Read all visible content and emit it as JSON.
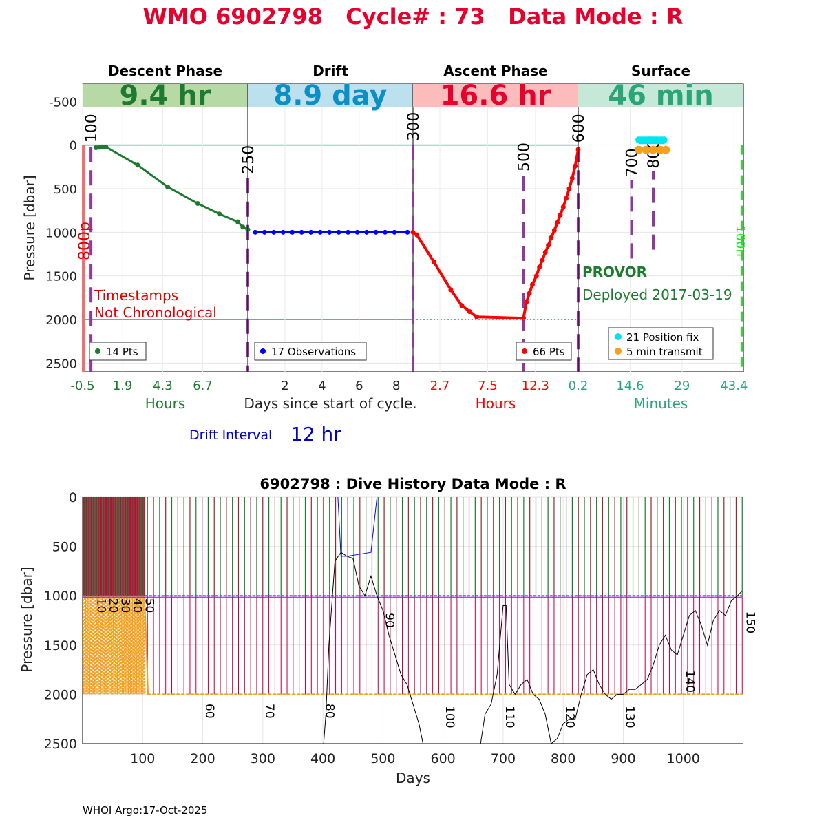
{
  "title": "WMO 6902798   Cycle# : 73   Data Mode : R",
  "colors": {
    "title": "#e8002d",
    "descent": "#1e7a2e",
    "descent_bg": "#b7d9a6",
    "drift": "#0000ff",
    "drift_text": "#0b8fc4",
    "drift_bg": "#bde0ee",
    "ascent": "#ff0000",
    "ascent_text": "#e8002d",
    "ascent_bg": "#fdbcbc",
    "surface_text": "#2aa57a",
    "surface_bg": "#c5e8d8",
    "marker_purple": "#8e3a9c",
    "position_fix": "#00e5ee",
    "transmit": "#f7a020",
    "ref_line": "#2e9a7e",
    "green_dashed": "#22e022",
    "dive_green": "#1e7a2e",
    "dive_brown": "#8b2e2e",
    "dive_crimson": "#c0003c",
    "dive_magenta": "#ff00ff",
    "dive_orange": "#f2a020"
  },
  "chart_data": [
    {
      "type": "line",
      "panel": "cycle",
      "ylabel": "Pressure [dbar]",
      "ylim": [
        2600,
        -700
      ],
      "yticks": [
        -500,
        0,
        500,
        1000,
        1500,
        2000,
        2500
      ],
      "ytick_labels": [
        "-500",
        "0",
        "500",
        "1000",
        "1500",
        "2000",
        "2500"
      ],
      "xlabel": "Days since start of cycle.",
      "phases": [
        {
          "header": "Descent Phase",
          "duration": "9.4 hr",
          "xlabel": "Hours",
          "xlim": [
            -0.5,
            9.4
          ],
          "xticks": [
            -0.5,
            1.9,
            4.3,
            6.7
          ],
          "xtick_labels": [
            "-0.5",
            "1.9",
            "4.3",
            "6.7"
          ],
          "legend": "14 Pts",
          "series": {
            "x": [
              0.3,
              0.5,
              0.7,
              0.9,
              2.8,
              4.6,
              6.4,
              7.7,
              8.8,
              9.1,
              9.4
            ],
            "y": [
              30,
              25,
              20,
              22,
              230,
              480,
              670,
              790,
              880,
              940,
              970
            ]
          },
          "markers": [
            {
              "label": "100",
              "x": 0.0,
              "top": 20,
              "bottom": 2600
            },
            {
              "label": "250",
              "x": 9.4,
              "top": 380,
              "bottom": 2600
            }
          ]
        },
        {
          "header": "Drift",
          "duration": "8.9 day",
          "xlim": [
            0.0,
            8.9
          ],
          "xticks": [
            2,
            4,
            6,
            8
          ],
          "xtick_labels": [
            "2",
            "4",
            "6",
            "8"
          ],
          "legend": "17 Observations",
          "series": {
            "x": [
              0.4,
              0.9,
              1.4,
              1.9,
              2.4,
              2.9,
              3.4,
              3.9,
              4.4,
              4.9,
              5.4,
              5.9,
              6.4,
              6.9,
              7.4,
              7.9,
              8.6
            ],
            "y": [
              1000,
              1000,
              1000,
              1000,
              1000,
              1000,
              1000,
              1000,
              1000,
              1000,
              1000,
              1000,
              1000,
              1000,
              1000,
              1000,
              1000
            ]
          }
        },
        {
          "header": "Ascent Phase",
          "duration": "16.6 hr",
          "xlabel": "Hours",
          "xlim": [
            0.0,
            16.6
          ],
          "xticks": [
            2.7,
            7.5,
            12.3
          ],
          "xtick_labels": [
            "2.7",
            "7.5",
            "12.3"
          ],
          "legend": "66 Pts",
          "series": {
            "x": [
              0.0,
              0.4,
              2.1,
              3.8,
              4.9,
              5.7,
              6.4,
              11.1,
              11.4,
              11.7,
              12.0,
              12.4,
              12.7,
              13.0,
              13.3,
              13.6,
              13.9,
              14.2,
              14.5,
              14.8,
              15.1,
              15.4,
              15.7,
              16.0,
              16.3,
              16.6
            ],
            "y": [
              1000,
              1030,
              1340,
              1660,
              1840,
              1910,
              1970,
              1985,
              1800,
              1700,
              1600,
              1500,
              1400,
              1320,
              1230,
              1150,
              1060,
              980,
              890,
              800,
              710,
              610,
              500,
              380,
              240,
              50
            ]
          },
          "markers": [
            {
              "label": "300",
              "x": 0.0,
              "top": 0,
              "bottom": 2600
            },
            {
              "label": "500",
              "x": 11.1,
              "top": 350,
              "bottom": 2600
            },
            {
              "label": "600",
              "x": 16.6,
              "top": 20,
              "bottom": 2600
            }
          ],
          "reference_dotted": 2000
        },
        {
          "header": "Surface",
          "duration": "46 min",
          "xlabel": "Minutes",
          "xlim": [
            0.2,
            46.0
          ],
          "xticks": [
            0.2,
            14.6,
            29,
            43.4
          ],
          "xtick_labels": [
            "0.2",
            "14.6",
            "29",
            "43.4"
          ],
          "legend": [
            "21 Position fix",
            "5 min transmit"
          ],
          "position_fix": {
            "x": [
              17.0,
              17.7,
              18.4,
              19.1,
              19.8,
              20.5,
              21.2,
              21.9,
              22.6,
              23.3,
              24.0,
              17.4,
              18.1,
              18.8,
              19.5,
              20.2,
              20.9,
              21.6,
              22.3,
              23.0,
              23.7
            ],
            "y": [
              -60,
              -60,
              -60,
              -60,
              -60,
              -60,
              -60,
              -60,
              -60,
              -60,
              -60,
              -50,
              -50,
              -50,
              -50,
              -50,
              -50,
              -50,
              -50,
              -50,
              -50
            ]
          },
          "transmit": {
            "x": [
              17.0,
              19.0,
              21.0,
              23.0,
              24.5
            ],
            "y": [
              55,
              55,
              55,
              55,
              55
            ]
          },
          "markers": [
            {
              "label": "700",
              "x": 15.0,
              "top": 1300,
              "bottom": 400
            },
            {
              "label": "800",
              "x": 21.0,
              "top": 1200,
              "bottom": 300
            }
          ],
          "green_line_label": "100n",
          "green_line_x": 46.0
        }
      ],
      "annotations": {
        "left_marker": "800p",
        "timestamps_warning": [
          "Timestamps",
          "Not Chronological"
        ],
        "float_type": "PROVOR",
        "deployed": "Deployed 2017-03-19",
        "drift_interval_label": "Drift Interval",
        "drift_interval_value": "12 hr"
      }
    },
    {
      "type": "line",
      "panel": "dive_history",
      "title": "6902798 : Dive History      Data Mode : R",
      "xlabel": "Days",
      "ylabel": "Pressure [dbar]",
      "xlim": [
        0,
        1100
      ],
      "ylim": [
        2500,
        0
      ],
      "xticks": [
        100,
        200,
        300,
        400,
        500,
        600,
        700,
        800,
        900,
        1000
      ],
      "xtick_labels": [
        "100",
        "200",
        "300",
        "400",
        "500",
        "600",
        "700",
        "800",
        "900",
        "1000"
      ],
      "yticks": [
        0,
        500,
        1000,
        1500,
        2000,
        2500
      ],
      "ytick_labels": [
        "0",
        "500",
        "1000",
        "1500",
        "2000",
        "2500"
      ],
      "cycle_labels": [
        {
          "label": "10",
          "x": 18,
          "y": 1100
        },
        {
          "label": "20",
          "x": 38,
          "y": 1100
        },
        {
          "label": "30",
          "x": 58,
          "y": 1100
        },
        {
          "label": "40",
          "x": 78,
          "y": 1100
        },
        {
          "label": "50",
          "x": 98,
          "y": 1100
        },
        {
          "label": "60",
          "x": 198,
          "y": 2170
        },
        {
          "label": "70",
          "x": 298,
          "y": 2170
        },
        {
          "label": "80",
          "x": 398,
          "y": 2170
        },
        {
          "label": "90",
          "x": 498,
          "y": 1250
        },
        {
          "label": "100",
          "x": 598,
          "y": 2230
        },
        {
          "label": "110",
          "x": 698,
          "y": 2230
        },
        {
          "label": "120",
          "x": 798,
          "y": 2230
        },
        {
          "label": "130",
          "x": 898,
          "y": 2230
        },
        {
          "label": "140",
          "x": 998,
          "y": 1870
        },
        {
          "label": "150",
          "x": 1098,
          "y": 1270
        }
      ],
      "early_profiles": {
        "x_start": 1,
        "x_end": 103,
        "count": 52,
        "depth": 2000
      },
      "later_profiles": {
        "x_start": 108,
        "x_end": 1098,
        "count": 99,
        "depth": 2000
      },
      "parking_depth": 1000,
      "bottom_depth": 2000,
      "bathymetry": {
        "x": [
          340,
          360,
          380,
          400,
          405,
          410,
          420,
          430,
          440,
          450,
          460,
          470,
          480,
          490,
          500,
          510,
          520,
          530,
          540,
          550,
          560,
          570,
          580,
          590,
          600,
          610,
          620,
          630,
          640,
          650,
          660,
          670,
          680,
          690,
          700,
          705,
          710,
          720,
          730,
          740,
          750,
          760,
          770,
          780,
          790,
          800,
          810,
          820,
          830,
          840,
          850,
          860,
          870,
          880,
          890,
          900,
          910,
          920,
          930,
          940,
          950,
          960,
          970,
          980,
          990,
          1000,
          1010,
          1020,
          1030,
          1040,
          1050,
          1060,
          1070,
          1080,
          1090,
          1098
        ],
        "y": [
          2600,
          2600,
          2600,
          2600,
          2200,
          1500,
          650,
          560,
          600,
          620,
          900,
          1000,
          800,
          1000,
          1150,
          1400,
          1600,
          1800,
          1900,
          2100,
          2300,
          2600,
          2600,
          2600,
          2600,
          2600,
          2600,
          2600,
          2600,
          2600,
          2600,
          2200,
          2100,
          1800,
          1100,
          1100,
          1900,
          2000,
          1900,
          1850,
          2000,
          2050,
          2200,
          2500,
          2450,
          2300,
          2250,
          2250,
          2000,
          1800,
          1750,
          1900,
          2000,
          2050,
          2000,
          2000,
          1950,
          1950,
          1900,
          1850,
          1700,
          1500,
          1400,
          1550,
          1600,
          1400,
          1200,
          1150,
          1300,
          1500,
          1250,
          1150,
          1200,
          1050,
          1000,
          950
        ]
      }
    }
  ],
  "footer": "WHOI Argo:17-Oct-2025"
}
